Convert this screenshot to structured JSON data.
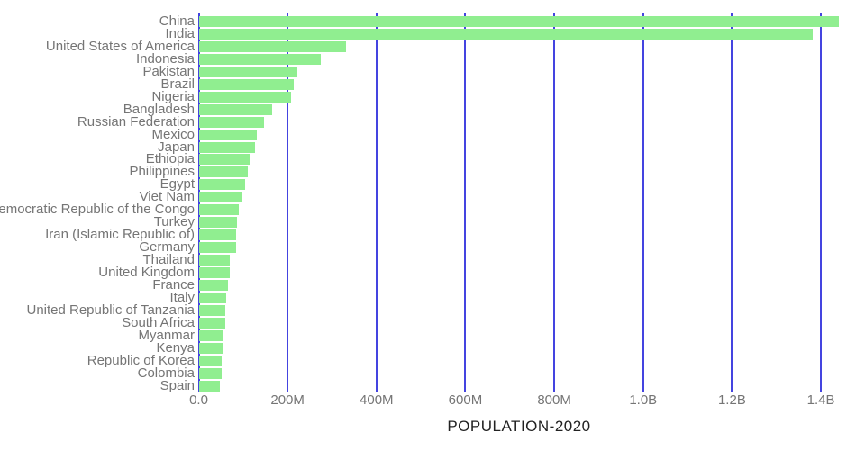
{
  "chart_data": {
    "type": "bar",
    "orientation": "horizontal",
    "title": "",
    "xlabel": "POPULATION-2020",
    "ylabel": "",
    "unit": "millions of people",
    "categories": [
      "China",
      "India",
      "United States of America",
      "Indonesia",
      "Pakistan",
      "Brazil",
      "Nigeria",
      "Bangladesh",
      "Russian Federation",
      "Mexico",
      "Japan",
      "Ethiopia",
      "Philippines",
      "Egypt",
      "Viet Nam",
      "Democratic Republic of the Congo",
      "Turkey",
      "Iran (Islamic Republic of)",
      "Germany",
      "Thailand",
      "United Kingdom",
      "France",
      "Italy",
      "United Republic of Tanzania",
      "South Africa",
      "Myanmar",
      "Kenya",
      "Republic of Korea",
      "Colombia",
      "Spain"
    ],
    "values": [
      1439.3,
      1380.0,
      331.0,
      273.5,
      220.9,
      212.6,
      206.1,
      164.7,
      145.9,
      128.9,
      126.5,
      115.0,
      109.6,
      102.3,
      97.3,
      89.6,
      84.3,
      84.0,
      83.8,
      69.8,
      67.9,
      65.3,
      60.5,
      59.7,
      59.3,
      54.4,
      53.8,
      51.3,
      50.9,
      46.8
    ],
    "xlim_millions": [
      0,
      1450
    ],
    "xticks": [
      {
        "label": "0.0",
        "millions": 0
      },
      {
        "label": "200M",
        "millions": 200
      },
      {
        "label": "400M",
        "millions": 400
      },
      {
        "label": "600M",
        "millions": 600
      },
      {
        "label": "800M",
        "millions": 800
      },
      {
        "label": "1.0B",
        "millions": 1000
      },
      {
        "label": "1.2B",
        "millions": 1200
      },
      {
        "label": "1.4B",
        "millions": 1400
      }
    ],
    "grid": true,
    "legend": false,
    "colors": {
      "bar": "#90EE90",
      "gridline": "#4444e0",
      "tick_label": "#757575",
      "category_label": "#757575",
      "axis_title": "#222222",
      "background": "#ffffff"
    }
  }
}
